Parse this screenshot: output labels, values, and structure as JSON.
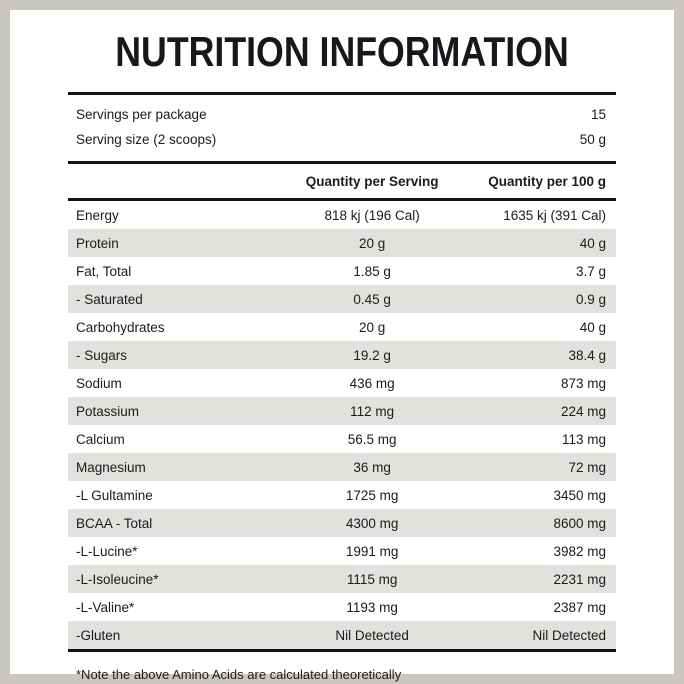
{
  "title": "NUTRITION INFORMATION",
  "servings": {
    "rows": [
      {
        "label": "Servings per package",
        "value": "15"
      },
      {
        "label": "Serving size (2 scoops)",
        "value": "50 g"
      }
    ]
  },
  "table": {
    "columns": [
      "",
      "Quantity per Serving",
      "Quantity per 100 g"
    ],
    "rows": [
      {
        "label": "Energy",
        "per_serving": "818 kj (196 Cal)",
        "per_100g": "1635 kj (391 Cal)"
      },
      {
        "label": "Protein",
        "per_serving": "20 g",
        "per_100g": "40 g"
      },
      {
        "label": "Fat, Total",
        "per_serving": "1.85 g",
        "per_100g": "3.7 g"
      },
      {
        "label": "- Saturated",
        "per_serving": "0.45 g",
        "per_100g": "0.9 g"
      },
      {
        "label": "Carbohydrates",
        "per_serving": "20 g",
        "per_100g": "40 g"
      },
      {
        "label": "- Sugars",
        "per_serving": "19.2 g",
        "per_100g": "38.4 g"
      },
      {
        "label": "Sodium",
        "per_serving": "436 mg",
        "per_100g": "873 mg"
      },
      {
        "label": "Potassium",
        "per_serving": "112 mg",
        "per_100g": "224 mg"
      },
      {
        "label": "Calcium",
        "per_serving": "56.5 mg",
        "per_100g": "113 mg"
      },
      {
        "label": "Magnesium",
        "per_serving": "36 mg",
        "per_100g": "72 mg"
      },
      {
        "label": "-L Gultamine",
        "per_serving": "1725 mg",
        "per_100g": "3450 mg"
      },
      {
        "label": "BCAA - Total",
        "per_serving": "4300 mg",
        "per_100g": "8600 mg"
      },
      {
        "label": "-L-Lucine*",
        "per_serving": "1991 mg",
        "per_100g": "3982 mg"
      },
      {
        "label": "-L-Isoleucine*",
        "per_serving": "1115 mg",
        "per_100g": "2231 mg"
      },
      {
        "label": "-L-Valine*",
        "per_serving": "1193 mg",
        "per_100g": "2387 mg"
      },
      {
        "label": "-Gluten",
        "per_serving": "Nil Detected",
        "per_100g": "Nil Detected"
      }
    ]
  },
  "footnote": "*Note the above Amino Acids are calculated theoretically",
  "colors": {
    "bg": "#cac7c2",
    "panel": "#ffffff",
    "stripe": "#e3e1dd",
    "line": "#121216",
    "text": "#1b1b1f"
  }
}
